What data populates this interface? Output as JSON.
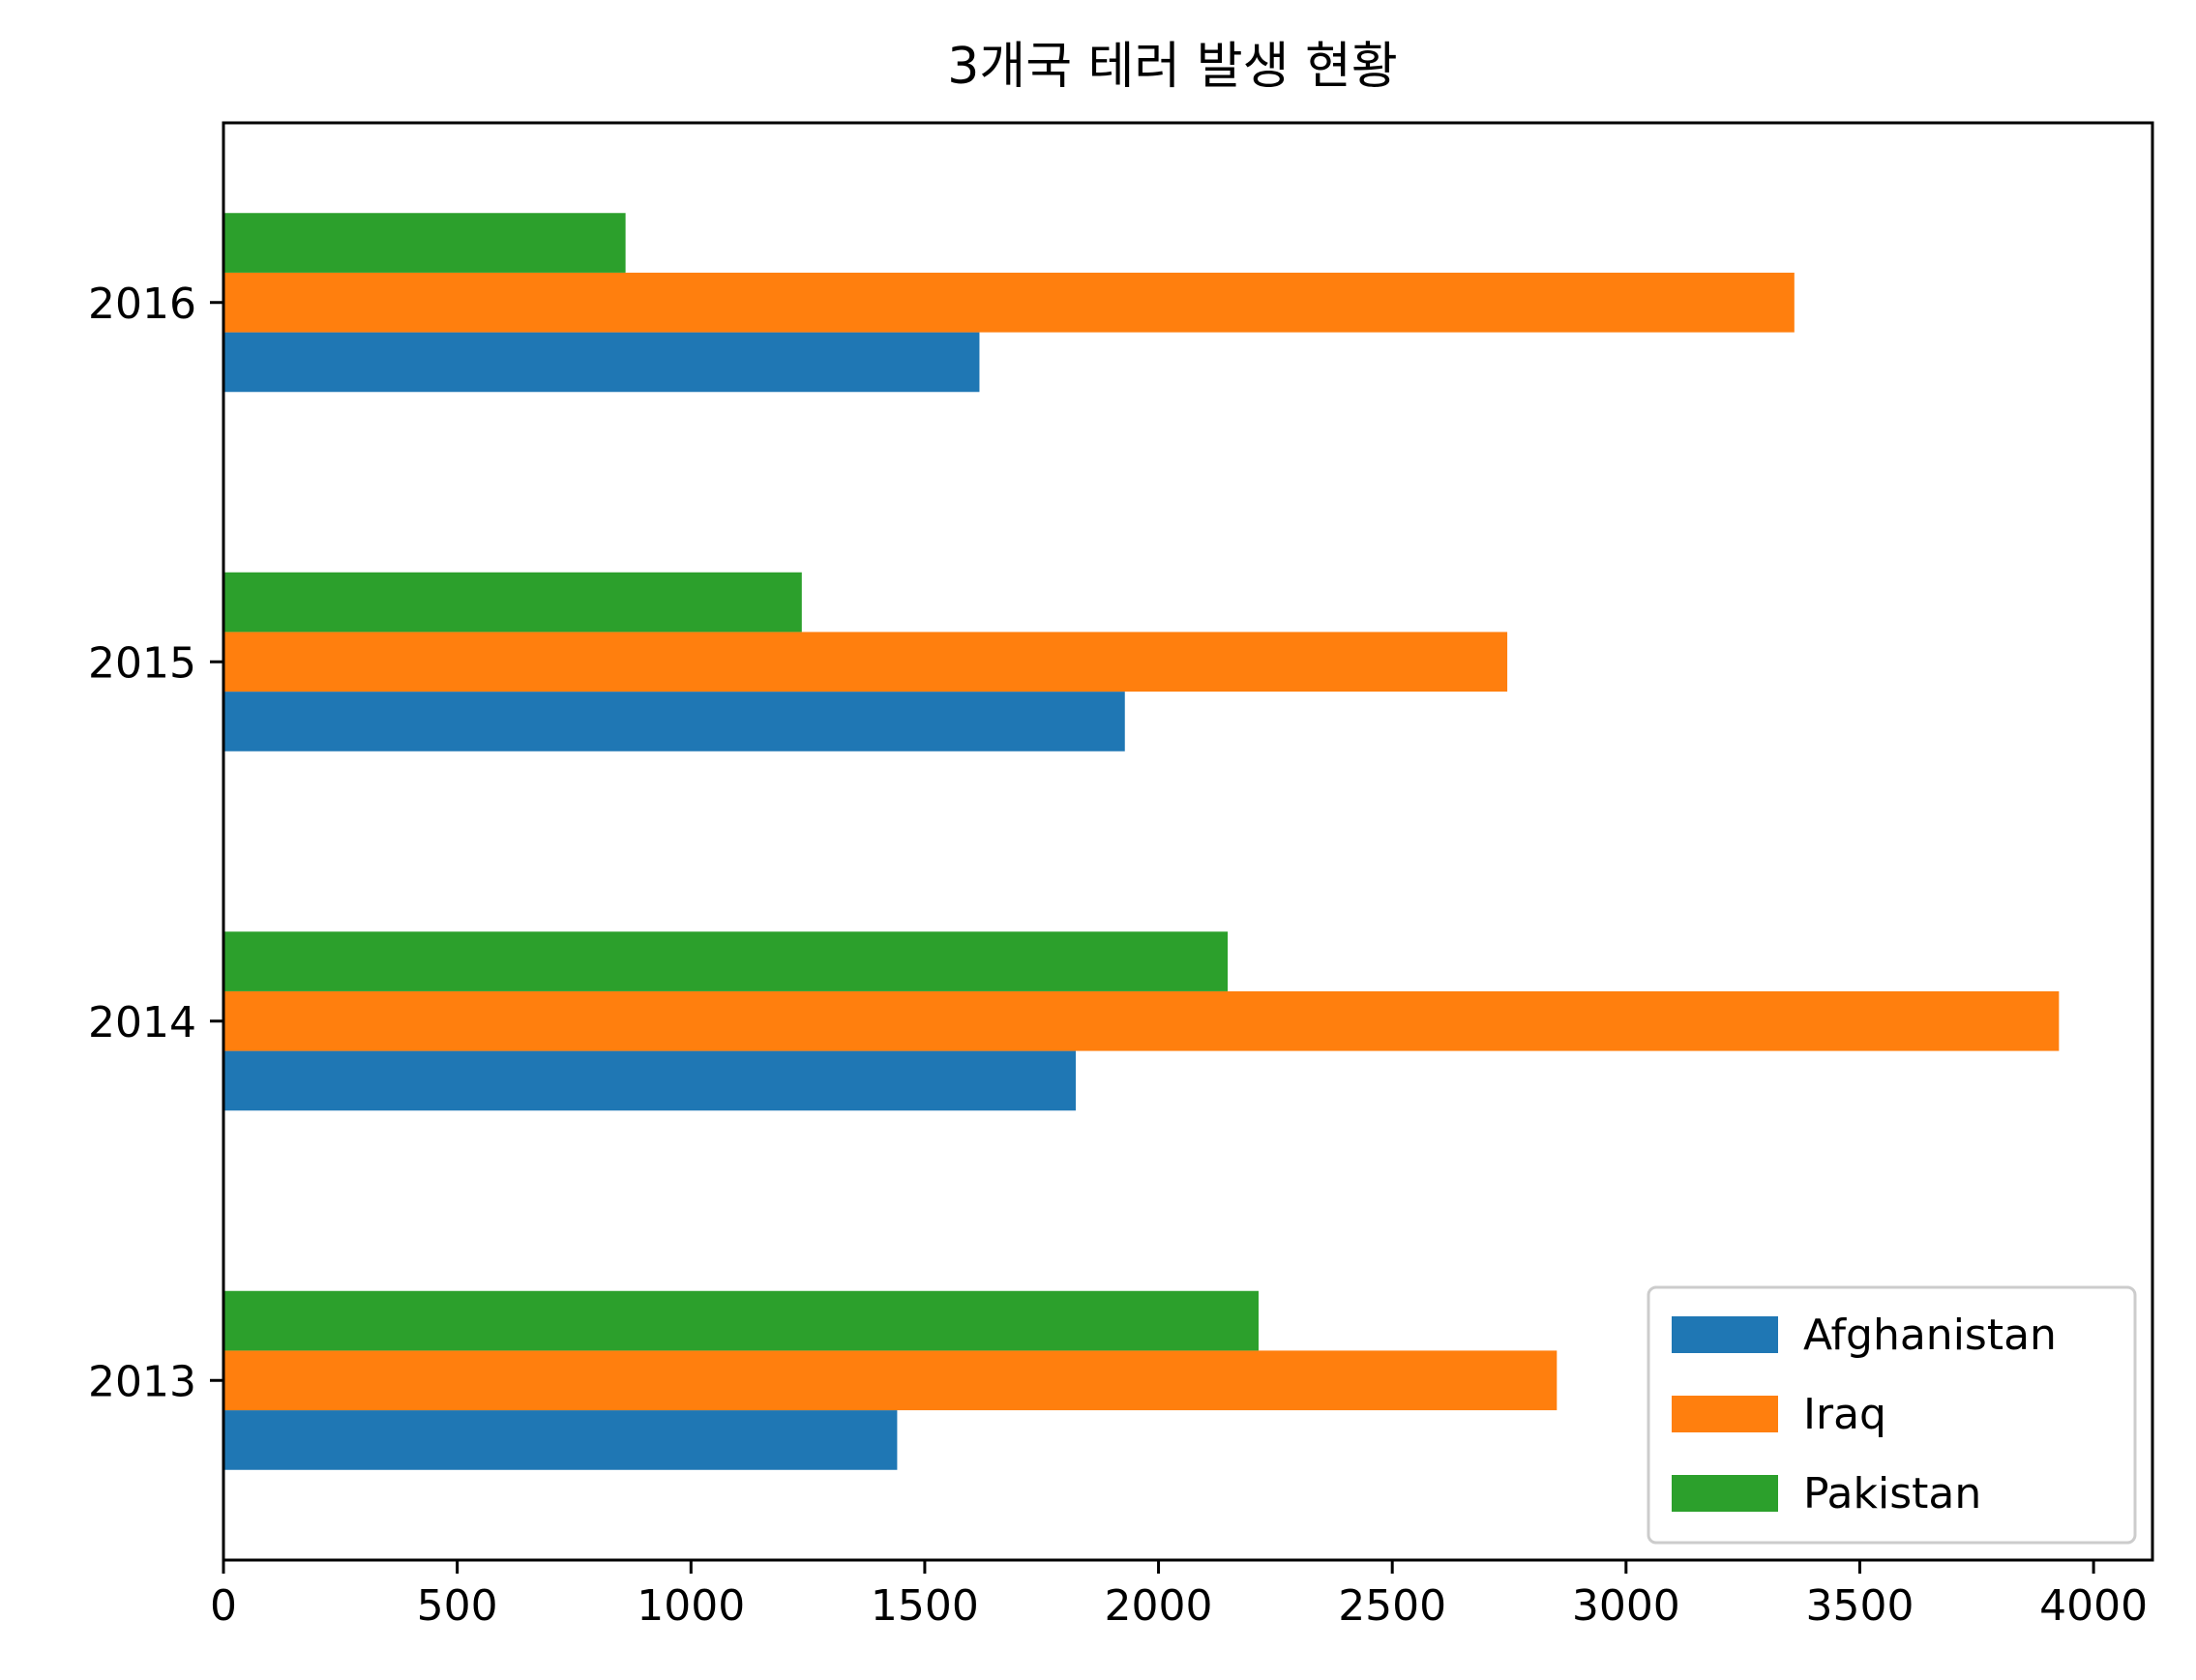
{
  "chart_data": {
    "type": "bar",
    "orientation": "horizontal",
    "title": "3개국 테러 발생 현황",
    "xlabel": "",
    "ylabel": "",
    "categories": [
      "2013",
      "2014",
      "2015",
      "2016"
    ],
    "series": [
      {
        "name": "Afghanistan",
        "color": "#1f77b4",
        "values": [
          1441,
          1823,
          1928,
          1617
        ]
      },
      {
        "name": "Iraq",
        "color": "#ff7f0e",
        "values": [
          2852,
          3926,
          2746,
          3360
        ]
      },
      {
        "name": "Pakistan",
        "color": "#2ca02c",
        "values": [
          2214,
          2148,
          1237,
          860
        ]
      }
    ],
    "xlim": [
      0,
      4126
    ],
    "xticks": [
      "0",
      "500",
      "1000",
      "1500",
      "2000",
      "2500",
      "3000",
      "3500",
      "4000"
    ],
    "legend": "lower-right",
    "grid": false
  }
}
